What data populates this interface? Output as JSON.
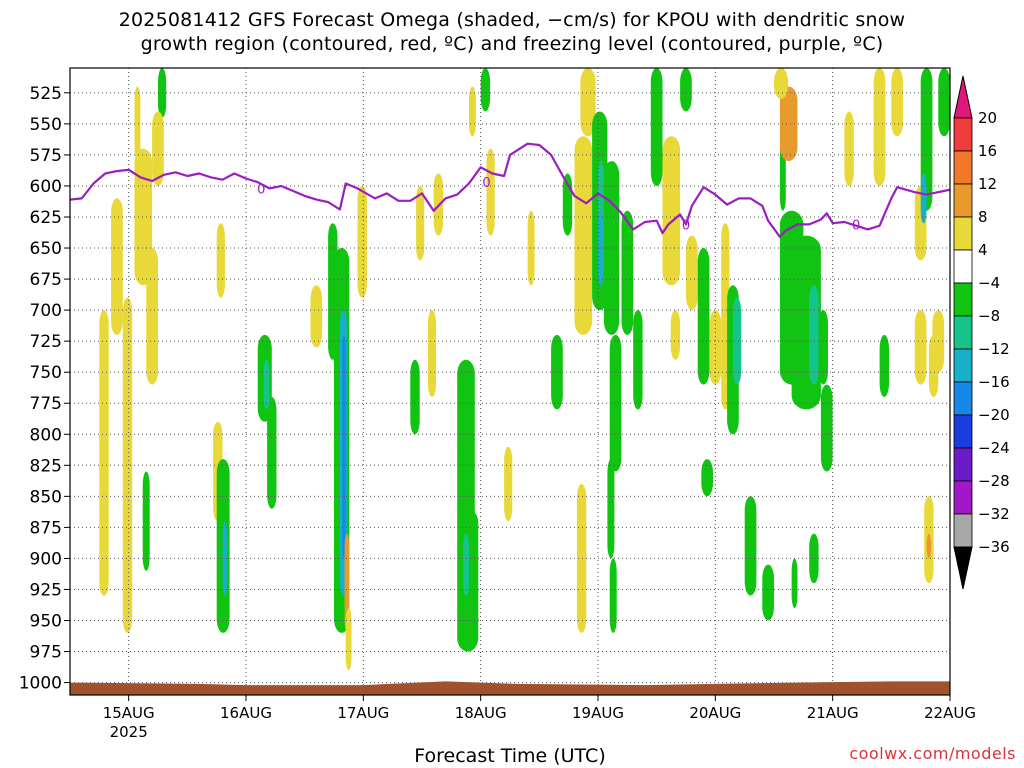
{
  "title": {
    "line1": "2025081412 GFS Forecast Omega (shaded, −cm/s) for KPOU with dendritic snow",
    "line2": "growth region (contoured, red, ºC) and freezing level (contoured, purple, ºC)"
  },
  "xlabel": "Forecast Time (UTC)",
  "credit": "coolwx.com/models",
  "chart_data": {
    "type": "heatmap",
    "title": "2025081412 GFS Forecast Omega (shaded, −cm/s) for KPOU with dendritic snow growth region (contoured, red, ºC) and freezing level (contoured, purple, ºC)",
    "xlabel": "Forecast Time (UTC)",
    "ylabel": "",
    "x_ticks": [
      "15AUG",
      "16AUG",
      "17AUG",
      "18AUG",
      "19AUG",
      "20AUG",
      "21AUG",
      "22AUG"
    ],
    "x_sublabel": "2025",
    "x_range_days": [
      14.5,
      22.0
    ],
    "y_ticks": [
      525,
      550,
      575,
      600,
      625,
      650,
      675,
      700,
      725,
      750,
      775,
      800,
      825,
      850,
      875,
      900,
      925,
      950,
      975,
      1000
    ],
    "y_range": [
      505,
      1010
    ],
    "grid": true,
    "colorbar": {
      "labels": [
        "20",
        "16",
        "12",
        "8",
        "4",
        "−4",
        "−8",
        "−12",
        "−16",
        "−20",
        "−24",
        "−28",
        "−32",
        "−36"
      ],
      "colors": [
        "#e0177a",
        "#f03c3c",
        "#f07828",
        "#e89b2c",
        "#e8d838",
        "#ffffff",
        "#11c411",
        "#14c48a",
        "#18b0c8",
        "#1888e8",
        "#1c3ce0",
        "#6a1cc8",
        "#a018c8",
        "#a8a8a8",
        "#000000"
      ]
    },
    "freezing_level": {
      "color": "#9a1ec0",
      "label": "0",
      "points": [
        [
          14.5,
          611
        ],
        [
          14.6,
          610
        ],
        [
          14.7,
          598
        ],
        [
          14.8,
          590
        ],
        [
          14.9,
          588
        ],
        [
          15.0,
          587
        ],
        [
          15.1,
          593
        ],
        [
          15.2,
          596
        ],
        [
          15.3,
          591
        ],
        [
          15.4,
          589
        ],
        [
          15.5,
          592
        ],
        [
          15.6,
          590
        ],
        [
          15.7,
          593
        ],
        [
          15.8,
          595
        ],
        [
          15.9,
          590
        ],
        [
          16.0,
          594
        ],
        [
          16.1,
          597
        ],
        [
          16.2,
          602
        ],
        [
          16.3,
          600
        ],
        [
          16.4,
          604
        ],
        [
          16.5,
          608
        ],
        [
          16.6,
          611
        ],
        [
          16.7,
          613
        ],
        [
          16.8,
          619
        ],
        [
          16.85,
          598
        ],
        [
          16.95,
          602
        ],
        [
          17.1,
          610
        ],
        [
          17.2,
          606
        ],
        [
          17.3,
          612
        ],
        [
          17.4,
          612
        ],
        [
          17.5,
          606
        ],
        [
          17.6,
          620
        ],
        [
          17.7,
          610
        ],
        [
          17.8,
          607
        ],
        [
          17.9,
          598
        ],
        [
          18.0,
          585
        ],
        [
          18.1,
          590
        ],
        [
          18.2,
          592
        ],
        [
          18.25,
          575
        ],
        [
          18.4,
          566
        ],
        [
          18.5,
          567
        ],
        [
          18.6,
          575
        ],
        [
          18.7,
          592
        ],
        [
          18.8,
          608
        ],
        [
          18.9,
          614
        ],
        [
          19.0,
          606
        ],
        [
          19.1,
          612
        ],
        [
          19.2,
          622
        ],
        [
          19.3,
          635
        ],
        [
          19.4,
          629
        ],
        [
          19.5,
          628
        ],
        [
          19.55,
          638
        ],
        [
          19.6,
          631
        ],
        [
          19.7,
          623
        ],
        [
          19.75,
          631
        ],
        [
          19.8,
          616
        ],
        [
          19.9,
          601
        ],
        [
          20.0,
          607
        ],
        [
          20.1,
          615
        ],
        [
          20.2,
          610
        ],
        [
          20.3,
          610
        ],
        [
          20.4,
          616
        ],
        [
          20.45,
          628
        ],
        [
          20.55,
          641
        ],
        [
          20.6,
          636
        ],
        [
          20.7,
          631
        ],
        [
          20.8,
          631
        ],
        [
          20.9,
          627
        ],
        [
          20.95,
          622
        ],
        [
          21.0,
          630
        ],
        [
          21.1,
          629
        ],
        [
          21.2,
          632
        ],
        [
          21.3,
          635
        ],
        [
          21.4,
          632
        ],
        [
          21.5,
          610
        ],
        [
          21.55,
          601
        ],
        [
          21.7,
          605
        ],
        [
          21.8,
          607
        ],
        [
          22.0,
          603
        ]
      ]
    },
    "omega_shading_description": "Positive (rising, yellow/orange) and negative (sinking, green/cyan/blue/purple) omega cells in vertical columns across the forecast period; strongest negative core near 17AUG 700–950 hPa."
  }
}
